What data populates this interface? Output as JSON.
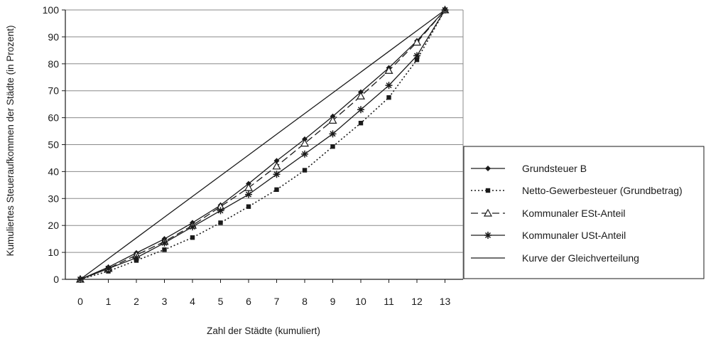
{
  "chart_data": {
    "type": "line",
    "xlabel": "Zahl der Städte (kumuliert)",
    "ylabel": "Kumuliertes Steueraufkommen der Städte (in Prozent)",
    "x": [
      0,
      1,
      2,
      3,
      4,
      5,
      6,
      7,
      8,
      9,
      10,
      11,
      12,
      13
    ],
    "xlim": [
      0,
      13
    ],
    "ylim": [
      0,
      100
    ],
    "yticks": [
      0,
      10,
      20,
      30,
      40,
      50,
      60,
      70,
      80,
      90,
      100
    ],
    "grid": "horizontal",
    "legend_position": "right",
    "series": [
      {
        "name": "Grundsteuer B",
        "style": "solid",
        "marker": "diamond",
        "values": [
          0,
          4.5,
          9.8,
          15,
          21,
          27.5,
          35.5,
          44,
          52,
          60.5,
          69.5,
          78.5,
          88.5,
          100
        ]
      },
      {
        "name": "Netto-Gewerbesteuer (Grundbetrag)",
        "style": "dotted",
        "marker": "square",
        "values": [
          0,
          3,
          7,
          11,
          15.5,
          21,
          27,
          33.3,
          40.5,
          49.3,
          58,
          67.5,
          81.5,
          100
        ]
      },
      {
        "name": "Kommunaler ESt-Anteil",
        "style": "dashed",
        "marker": "triangle",
        "values": [
          0,
          4,
          9,
          14,
          20,
          27,
          34,
          42,
          50.5,
          59,
          68,
          77.5,
          88,
          100
        ]
      },
      {
        "name": "Kommunaler USt-Anteil",
        "style": "solid",
        "marker": "asterisk",
        "values": [
          0,
          4,
          8,
          13.5,
          19.5,
          25.5,
          31.5,
          39,
          46.5,
          54,
          63,
          72,
          83,
          100
        ]
      },
      {
        "name": "Kurve der Gleichverteilung",
        "style": "solid",
        "marker": "none",
        "values": [
          0,
          7.69,
          15.38,
          23.08,
          30.77,
          38.46,
          46.15,
          53.85,
          61.54,
          69.23,
          76.92,
          84.62,
          92.31,
          100
        ]
      }
    ]
  }
}
